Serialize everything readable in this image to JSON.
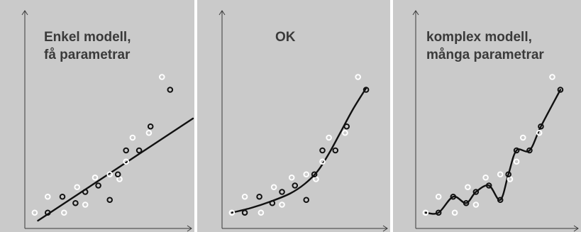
{
  "chart_data": [
    {
      "type": "scatter",
      "title_lines": [
        "Enkel modell,",
        "få parametrar"
      ],
      "fit": "linear",
      "xlim": [
        0,
        10
      ],
      "ylim": [
        0,
        10
      ],
      "train_points": [
        {
          "x": 1.1,
          "y": 0.9
        },
        {
          "x": 2.0,
          "y": 1.9
        },
        {
          "x": 2.8,
          "y": 1.5
        },
        {
          "x": 3.4,
          "y": 2.2
        },
        {
          "x": 4.2,
          "y": 2.6
        },
        {
          "x": 4.9,
          "y": 1.7
        },
        {
          "x": 5.4,
          "y": 3.3
        },
        {
          "x": 5.9,
          "y": 4.8
        },
        {
          "x": 6.7,
          "y": 4.8
        },
        {
          "x": 7.4,
          "y": 6.3
        },
        {
          "x": 8.6,
          "y": 8.6
        }
      ],
      "test_points": [
        {
          "x": 0.3,
          "y": 0.9
        },
        {
          "x": 1.1,
          "y": 1.9
        },
        {
          "x": 2.1,
          "y": 0.9
        },
        {
          "x": 2.9,
          "y": 2.5
        },
        {
          "x": 3.4,
          "y": 1.4
        },
        {
          "x": 4.0,
          "y": 3.1
        },
        {
          "x": 4.9,
          "y": 3.3
        },
        {
          "x": 5.5,
          "y": 3.0
        },
        {
          "x": 5.9,
          "y": 4.1
        },
        {
          "x": 6.3,
          "y": 5.6
        },
        {
          "x": 7.3,
          "y": 5.9
        },
        {
          "x": 8.1,
          "y": 9.4
        }
      ],
      "curve": [
        {
          "x": 0.5,
          "y": 0.4
        },
        {
          "x": 10.0,
          "y": 6.8
        }
      ]
    },
    {
      "type": "scatter",
      "title_lines": [
        "OK"
      ],
      "fit": "smooth",
      "xlim": [
        0,
        10
      ],
      "ylim": [
        0,
        10
      ],
      "train_points": [
        {
          "x": 1.1,
          "y": 0.9
        },
        {
          "x": 2.0,
          "y": 1.9
        },
        {
          "x": 2.8,
          "y": 1.5
        },
        {
          "x": 3.4,
          "y": 2.2
        },
        {
          "x": 4.2,
          "y": 2.6
        },
        {
          "x": 4.9,
          "y": 1.7
        },
        {
          "x": 5.4,
          "y": 3.3
        },
        {
          "x": 5.9,
          "y": 4.8
        },
        {
          "x": 6.7,
          "y": 4.8
        },
        {
          "x": 7.4,
          "y": 6.3
        },
        {
          "x": 8.6,
          "y": 8.6
        }
      ],
      "test_points": [
        {
          "x": 0.3,
          "y": 0.9
        },
        {
          "x": 1.1,
          "y": 1.9
        },
        {
          "x": 2.1,
          "y": 0.9
        },
        {
          "x": 2.9,
          "y": 2.5
        },
        {
          "x": 3.4,
          "y": 1.4
        },
        {
          "x": 4.0,
          "y": 3.1
        },
        {
          "x": 4.9,
          "y": 3.3
        },
        {
          "x": 5.5,
          "y": 3.0
        },
        {
          "x": 5.9,
          "y": 4.1
        },
        {
          "x": 6.3,
          "y": 5.6
        },
        {
          "x": 7.3,
          "y": 5.9
        },
        {
          "x": 8.1,
          "y": 9.4
        }
      ],
      "curve": [
        {
          "x": 0.3,
          "y": 0.9
        },
        {
          "x": 1.5,
          "y": 1.2
        },
        {
          "x": 2.7,
          "y": 1.6
        },
        {
          "x": 3.9,
          "y": 2.1
        },
        {
          "x": 4.8,
          "y": 2.7
        },
        {
          "x": 5.6,
          "y": 3.5
        },
        {
          "x": 6.3,
          "y": 4.6
        },
        {
          "x": 7.0,
          "y": 5.9
        },
        {
          "x": 7.8,
          "y": 7.4
        },
        {
          "x": 8.6,
          "y": 8.7
        }
      ]
    },
    {
      "type": "scatter",
      "title_lines": [
        "komplex modell,",
        "många parametrar"
      ],
      "fit": "interpolating",
      "xlim": [
        0,
        10
      ],
      "ylim": [
        0,
        10
      ],
      "train_points": [
        {
          "x": 1.1,
          "y": 0.9
        },
        {
          "x": 2.0,
          "y": 1.9
        },
        {
          "x": 2.8,
          "y": 1.5
        },
        {
          "x": 3.4,
          "y": 2.2
        },
        {
          "x": 4.2,
          "y": 2.6
        },
        {
          "x": 4.9,
          "y": 1.7
        },
        {
          "x": 5.4,
          "y": 3.3
        },
        {
          "x": 5.9,
          "y": 4.8
        },
        {
          "x": 6.7,
          "y": 4.8
        },
        {
          "x": 7.4,
          "y": 6.3
        },
        {
          "x": 8.6,
          "y": 8.6
        }
      ],
      "test_points": [
        {
          "x": 0.3,
          "y": 0.9
        },
        {
          "x": 1.1,
          "y": 1.9
        },
        {
          "x": 2.1,
          "y": 0.9
        },
        {
          "x": 2.9,
          "y": 2.5
        },
        {
          "x": 3.4,
          "y": 1.4
        },
        {
          "x": 4.0,
          "y": 3.1
        },
        {
          "x": 4.9,
          "y": 3.3
        },
        {
          "x": 5.5,
          "y": 3.0
        },
        {
          "x": 5.9,
          "y": 4.1
        },
        {
          "x": 6.3,
          "y": 5.6
        },
        {
          "x": 7.3,
          "y": 5.9
        },
        {
          "x": 8.1,
          "y": 9.4
        }
      ],
      "curve": [
        {
          "x": 0.3,
          "y": 0.9
        },
        {
          "x": 1.1,
          "y": 0.9
        },
        {
          "x": 2.0,
          "y": 1.9
        },
        {
          "x": 2.8,
          "y": 1.5
        },
        {
          "x": 3.4,
          "y": 2.2
        },
        {
          "x": 4.2,
          "y": 2.6
        },
        {
          "x": 4.9,
          "y": 1.7
        },
        {
          "x": 5.4,
          "y": 3.3
        },
        {
          "x": 5.9,
          "y": 4.8
        },
        {
          "x": 6.7,
          "y": 4.8
        },
        {
          "x": 7.4,
          "y": 6.3
        },
        {
          "x": 8.6,
          "y": 8.6
        }
      ]
    }
  ],
  "colors": {
    "panel_background": "#cacaca",
    "axis": "#3a3a3a",
    "train_marker": "#111111",
    "test_marker": "#ffffff",
    "fit_line": "#111111",
    "title_text": "#3a3a3a"
  }
}
